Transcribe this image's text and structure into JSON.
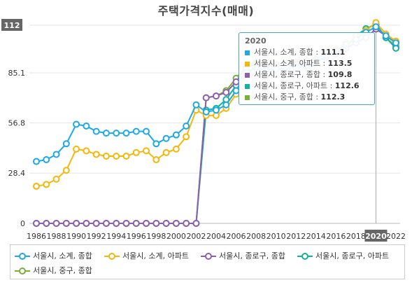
{
  "chart_data": {
    "type": "line",
    "title": "주택가격지수(매매)",
    "x": [
      1986,
      1987,
      1988,
      1989,
      1990,
      1991,
      1992,
      1993,
      1994,
      1995,
      1996,
      1997,
      1998,
      1999,
      2000,
      2001,
      2002,
      2003,
      2004,
      2005,
      2006,
      2007,
      2008,
      2009,
      2010,
      2011,
      2012,
      2013,
      2014,
      2015,
      2016,
      2017,
      2018,
      2019,
      2020,
      2021,
      2022
    ],
    "x_tick_labels": [
      "1986",
      "1988",
      "1990",
      "1992",
      "1994",
      "1996",
      "1998",
      "2000",
      "2002",
      "2004",
      "2006",
      "2008",
      "2010",
      "2012",
      "2014",
      "2016",
      "2018",
      "2020",
      "2022"
    ],
    "y_tick_labels": [
      "0",
      "28.4",
      "56.8",
      "85.1",
      "112"
    ],
    "xlim": [
      1986,
      2022
    ],
    "ylim": [
      0,
      112
    ],
    "series": [
      {
        "name": "서울시, 소계, 종합",
        "color": "#1ca9e6",
        "values": [
          35,
          36,
          39,
          45,
          56,
          55,
          52,
          51,
          51,
          51,
          52,
          52,
          45,
          48,
          50,
          55,
          67,
          63,
          64,
          67,
          75,
          85,
          88,
          87,
          87,
          88,
          88,
          89,
          91,
          95,
          97,
          101,
          104,
          108,
          111.1,
          106,
          102
        ]
      },
      {
        "name": "서울시, 소계, 아파트",
        "color": "#f5b70a",
        "values": [
          21,
          22,
          25,
          30,
          42,
          41,
          39,
          38,
          38,
          38,
          40,
          41,
          36,
          40,
          42,
          49,
          64,
          61,
          61,
          65,
          73,
          84,
          88,
          87,
          87,
          88,
          88,
          89,
          91,
          95,
          97,
          102,
          105,
          109,
          113.5,
          107,
          103
        ]
      },
      {
        "name": "서울시, 종로구, 종합",
        "color": "#8e5fae",
        "values": [
          0,
          0,
          0,
          0,
          0,
          0,
          0,
          0,
          0,
          0,
          0,
          0,
          0,
          0,
          0,
          0,
          0,
          71,
          72,
          74,
          80,
          88,
          90,
          89,
          89,
          90,
          90,
          91,
          92,
          94,
          96,
          99,
          102,
          105,
          109.8,
          106,
          102
        ]
      },
      {
        "name": "서울시, 종로구, 아파트",
        "color": "#15b29a",
        "values": [
          0,
          0,
          0,
          0,
          0,
          0,
          0,
          0,
          0,
          0,
          0,
          0,
          0,
          0,
          0,
          0,
          0,
          64,
          65,
          70,
          78,
          86,
          88,
          87,
          87,
          88,
          88,
          89,
          91,
          94,
          97,
          101,
          106,
          110,
          112.6,
          105,
          99
        ]
      },
      {
        "name": "서울시, 중구, 종합",
        "color": "#7aaf3a",
        "values": [
          0,
          0,
          0,
          0,
          0,
          0,
          0,
          0,
          0,
          0,
          0,
          0,
          0,
          0,
          0,
          0,
          0,
          71,
          72,
          75,
          82,
          89,
          91,
          90,
          90,
          91,
          91,
          92,
          93,
          96,
          98,
          101,
          105,
          110,
          112.3,
          105,
          100
        ]
      }
    ],
    "hover_year": "2020",
    "legend_position": "bottom",
    "grid": true
  },
  "tooltip": {
    "title": "2020",
    "rows": [
      {
        "label": "서울시, 소계, 종합",
        "value": "111.1",
        "color": "#1ca9e6"
      },
      {
        "label": "서울시, 소계, 아파트",
        "value": "113.5",
        "color": "#f5b70a"
      },
      {
        "label": "서울시, 종로구, 종합",
        "value": "109.8",
        "color": "#8e5fae"
      },
      {
        "label": "서울시, 종로구, 아파트",
        "value": "112.6",
        "color": "#15b29a"
      },
      {
        "label": "서울시, 중구, 종합",
        "value": "112.3",
        "color": "#7aaf3a"
      }
    ]
  }
}
